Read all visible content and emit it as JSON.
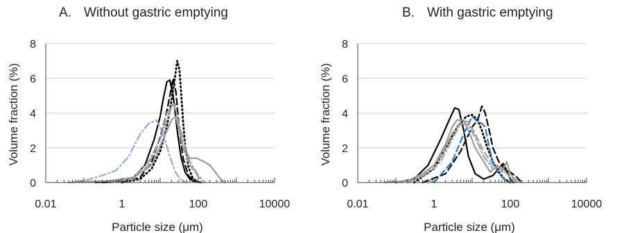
{
  "chart_data": [
    {
      "type": "line",
      "panel_letter": "A.",
      "title": "Without gastric emptying",
      "xlabel": "Particle size (μm)",
      "ylabel": "Volume fraction (%)",
      "x_scale": "log",
      "xlim": [
        0.01,
        10000
      ],
      "ylim": [
        0,
        8
      ],
      "x_ticks": [
        "0.01",
        "1",
        "100",
        "10000"
      ],
      "y_ticks": [
        "0",
        "2",
        "4",
        "6",
        "8"
      ],
      "grid": "horizontal",
      "legend": "none",
      "series": [
        {
          "color": "#000000",
          "dash": "solid",
          "x": [
            0.2,
            0.5,
            1,
            2,
            4,
            7,
            10,
            12,
            15,
            18,
            22,
            28,
            35,
            45,
            60,
            80,
            120
          ],
          "y": [
            0,
            0.05,
            0.1,
            0.3,
            1.0,
            2.5,
            3.8,
            4.8,
            5.8,
            5.9,
            5.0,
            3.0,
            1.5,
            0.6,
            0.2,
            0.05,
            0
          ]
        },
        {
          "color": "#000000",
          "dash": "dashed",
          "x": [
            0.3,
            1,
            3,
            6,
            10,
            14,
            18,
            22,
            26,
            32,
            40,
            55,
            80,
            120
          ],
          "y": [
            0,
            0.05,
            0.3,
            1.2,
            2.6,
            3.8,
            5.0,
            6.0,
            5.2,
            3.0,
            1.4,
            0.4,
            0.05,
            0
          ]
        },
        {
          "color": "#000000",
          "dash": "dotted",
          "x": [
            1,
            3,
            6,
            10,
            15,
            20,
            25,
            28,
            32,
            36,
            40,
            45,
            55,
            70,
            90,
            120
          ],
          "y": [
            0,
            0.2,
            0.8,
            1.8,
            3.2,
            4.8,
            6.2,
            7.0,
            6.5,
            5.0,
            3.5,
            2.2,
            0.9,
            0.3,
            0.05,
            0
          ]
        },
        {
          "color": "#8faadc",
          "dash": "dashdot",
          "x": [
            0.05,
            0.1,
            0.3,
            0.7,
            1.5,
            3,
            5,
            8,
            12,
            18,
            25,
            35,
            50
          ],
          "y": [
            0,
            0.1,
            0.4,
            0.7,
            1.5,
            2.8,
            3.4,
            3.6,
            2.8,
            1.5,
            0.6,
            0.15,
            0
          ]
        },
        {
          "color": "#9b9b9b",
          "dash": "solid",
          "x": [
            0.04,
            0.1,
            0.5,
            2,
            6,
            12,
            20,
            25,
            30,
            40,
            60,
            90,
            140,
            200,
            280,
            380,
            500
          ],
          "y": [
            0,
            0.05,
            0.1,
            0.3,
            1.0,
            2.5,
            3.6,
            3.8,
            3.2,
            2.0,
            1.4,
            1.4,
            1.2,
            1.0,
            0.6,
            0.2,
            0
          ]
        },
        {
          "color": "#9b9b9b",
          "dash": "dashed",
          "x": [
            0.5,
            2,
            5,
            10,
            15,
            20,
            25,
            30,
            40,
            60,
            90,
            120
          ],
          "y": [
            0,
            0.2,
            1.0,
            2.5,
            4.0,
            4.4,
            4.5,
            3.5,
            2.0,
            1.0,
            0.5,
            0
          ]
        },
        {
          "color": "#9b9b9b",
          "dash": "dashdot",
          "x": [
            0.5,
            2,
            5,
            10,
            15,
            22,
            28,
            40,
            60,
            100,
            150
          ],
          "y": [
            0,
            0.3,
            1.2,
            2.5,
            3.6,
            4.6,
            3.8,
            2.5,
            1.2,
            0.4,
            0
          ]
        }
      ]
    },
    {
      "type": "line",
      "panel_letter": "B.",
      "title": "With gastric emptying",
      "xlabel": "Particle size (μm)",
      "ylabel": "Volume fraction (%)",
      "x_scale": "log",
      "xlim": [
        0.01,
        10000
      ],
      "ylim": [
        0,
        8
      ],
      "x_ticks": [
        "0.01",
        "1",
        "100",
        "10000"
      ],
      "y_ticks": [
        "0",
        "2",
        "4",
        "6",
        "8"
      ],
      "grid": "horizontal",
      "legend": "none",
      "series": [
        {
          "color": "#000000",
          "dash": "solid",
          "x": [
            0.1,
            0.3,
            0.7,
            1.5,
            2.5,
            3.5,
            4.5,
            6,
            8,
            12,
            20,
            35,
            50,
            65,
            80,
            100,
            120
          ],
          "y": [
            0,
            0.2,
            1.0,
            2.5,
            3.6,
            4.3,
            4.2,
            3.0,
            1.5,
            0.5,
            0.2,
            0.4,
            0.8,
            1.1,
            0.7,
            0.2,
            0
          ]
        },
        {
          "color": "#000000",
          "dash": "dashed",
          "x": [
            0.5,
            2,
            5,
            10,
            14,
            18,
            22,
            28,
            35,
            50,
            70,
            100,
            150,
            200
          ],
          "y": [
            0,
            0.5,
            1.8,
            3.2,
            3.6,
            4.4,
            4.0,
            3.0,
            2.0,
            1.2,
            0.8,
            0.6,
            0.3,
            0
          ]
        },
        {
          "color": "#000000",
          "dash": "dotted",
          "x": [
            0.3,
            1,
            2,
            4,
            7,
            10,
            14,
            18,
            25,
            35,
            50,
            70,
            100
          ],
          "y": [
            0,
            0.8,
            2.0,
            3.2,
            3.8,
            3.9,
            3.6,
            3.0,
            2.0,
            1.2,
            0.6,
            0.2,
            0
          ]
        },
        {
          "color": "#2e75b6",
          "dash": "dashed",
          "x": [
            1,
            3,
            6,
            10,
            14,
            18,
            22,
            28,
            35,
            50,
            70,
            100
          ],
          "y": [
            0,
            1.2,
            2.8,
            3.8,
            3.5,
            3.4,
            3.2,
            2.0,
            1.2,
            0.5,
            0.2,
            0
          ]
        },
        {
          "color": "#9b9b9b",
          "dash": "solid",
          "x": [
            0.05,
            0.2,
            0.5,
            1,
            2,
            3,
            4,
            6,
            8,
            12,
            20,
            30,
            45,
            60,
            80,
            100,
            130,
            200
          ],
          "y": [
            0,
            0.1,
            0.5,
            1.0,
            2.2,
            3.2,
            3.6,
            3.6,
            3.0,
            2.0,
            1.2,
            0.6,
            1.0,
            0.6,
            1.2,
            0.5,
            0.2,
            0
          ]
        },
        {
          "color": "#9b9b9b",
          "dash": "dashed",
          "x": [
            0.2,
            0.7,
            1.5,
            3,
            5,
            8,
            12,
            20,
            35,
            60,
            100,
            150
          ],
          "y": [
            0,
            0.6,
            1.5,
            2.8,
            3.5,
            3.5,
            2.8,
            1.8,
            1.0,
            0.8,
            0.3,
            0
          ]
        },
        {
          "color": "#9b9b9b",
          "dash": "dashdot",
          "x": [
            0.2,
            0.7,
            1.5,
            3,
            5,
            8,
            12,
            20,
            35,
            60,
            90,
            130
          ],
          "y": [
            0,
            0.5,
            1.2,
            2.5,
            3.4,
            3.3,
            2.6,
            1.5,
            0.8,
            0.9,
            0.4,
            0
          ]
        }
      ]
    }
  ]
}
